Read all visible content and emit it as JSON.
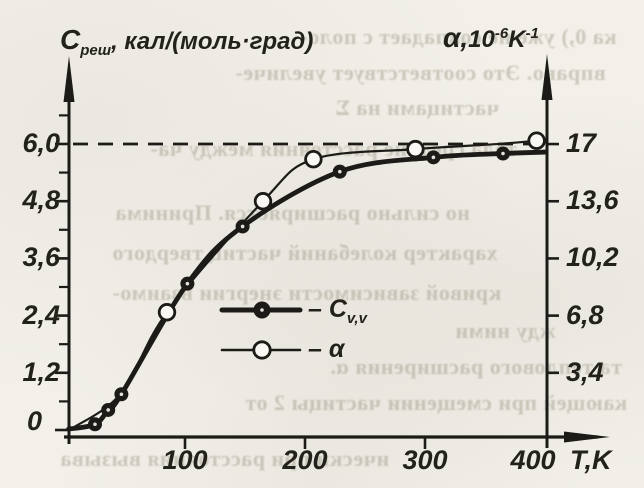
{
  "page": {
    "kind": "scanned textbook figure",
    "paper_color": "#f2f0e9",
    "ink_color": "#1d1b17"
  },
  "figure": {
    "left_axis": {
      "title_symbol": "C",
      "title_sub": "реш",
      "title_units": ", кал/(моль·град)",
      "tick_labels": [
        "6,0",
        "4,8",
        "3,6",
        "2,4",
        "1,2"
      ],
      "zero_label": "0"
    },
    "right_axis": {
      "title_alpha": "α,",
      "title_base": "10",
      "title_exp": "-6",
      "title_unit": "K",
      "title_unit_exp": "-1",
      "tick_labels": [
        "17",
        "13,6",
        "10,2",
        "6,8",
        "3,4"
      ]
    },
    "x_axis": {
      "tick_labels": [
        "100",
        "200",
        "300",
        "400"
      ],
      "unit_label": "T,K"
    },
    "legend": [
      {
        "dash": "–",
        "symbol": "C",
        "symbol_sub": "v,v",
        "marker": "filled-circle",
        "line": "thick"
      },
      {
        "dash": "–",
        "symbol": "α",
        "symbol_sub": "",
        "marker": "open-circle",
        "line": "thin"
      }
    ]
  },
  "chart_data": {
    "type": "line",
    "title": "",
    "xlabel": "T, K",
    "x_range": [
      0,
      450
    ],
    "left_axis": {
      "label": "Cреш, кал/(моль·град)",
      "range": [
        0,
        6.9
      ],
      "major_ticks": [
        6.0,
        4.8,
        3.6,
        2.4,
        1.2,
        0
      ]
    },
    "right_axis": {
      "label": "α, 10⁻⁶ K⁻¹",
      "range": [
        0,
        19.4
      ],
      "major_ticks": [
        17,
        13.6,
        10.2,
        6.8,
        3.4
      ]
    },
    "dashed_reference": {
      "left_value": 6.0,
      "right_value": 17
    },
    "legend_position": "inside lower right",
    "grid": false,
    "series": [
      {
        "name": "Cv,v",
        "axis": "left",
        "marker": "filled-circle",
        "line": "thick",
        "x": [
          3,
          25,
          36,
          47,
          102,
          148,
          229,
          307,
          365,
          400
        ],
        "y": [
          0.02,
          0.12,
          0.42,
          0.75,
          3.07,
          4.27,
          5.42,
          5.72,
          5.8,
          5.83
        ],
        "marker_points": {
          "x": [
            25,
            36,
            47,
            102,
            148,
            229,
            307,
            365
          ],
          "y": [
            0.12,
            0.42,
            0.75,
            3.07,
            4.27,
            5.42,
            5.72,
            5.8
          ]
        }
      },
      {
        "name": "α",
        "axis": "right",
        "marker": "open-circle",
        "line": "thin",
        "x": [
          6,
          47,
          85,
          165,
          207,
          292,
          360,
          393
        ],
        "y": [
          0.1,
          2.2,
          7.0,
          13.6,
          16.1,
          16.7,
          17.0,
          17.2
        ],
        "marker_points": {
          "x": [
            85,
            165,
            207,
            292,
            393
          ],
          "y": [
            7.0,
            13.6,
            16.1,
            16.7,
            17.2
          ]
        }
      }
    ]
  },
  "bleedthrough": {
    "lines": [
      "ка 0,) уже не совпадает с поло-",
      "вправо. Это соответствует увеличе-",
      "частицами на Σ",
      "тела средние расстояния между ча-",
      "но сильно расширяется. Принима",
      "характер колебаний частиц твердого",
      "кривой зависимости энергии взаимо-",
      "жду ними",
      "та теплового расширения α.",
      "кающей при смещении частицы 2 от",
      "ически при расстояния вызыва"
    ]
  }
}
